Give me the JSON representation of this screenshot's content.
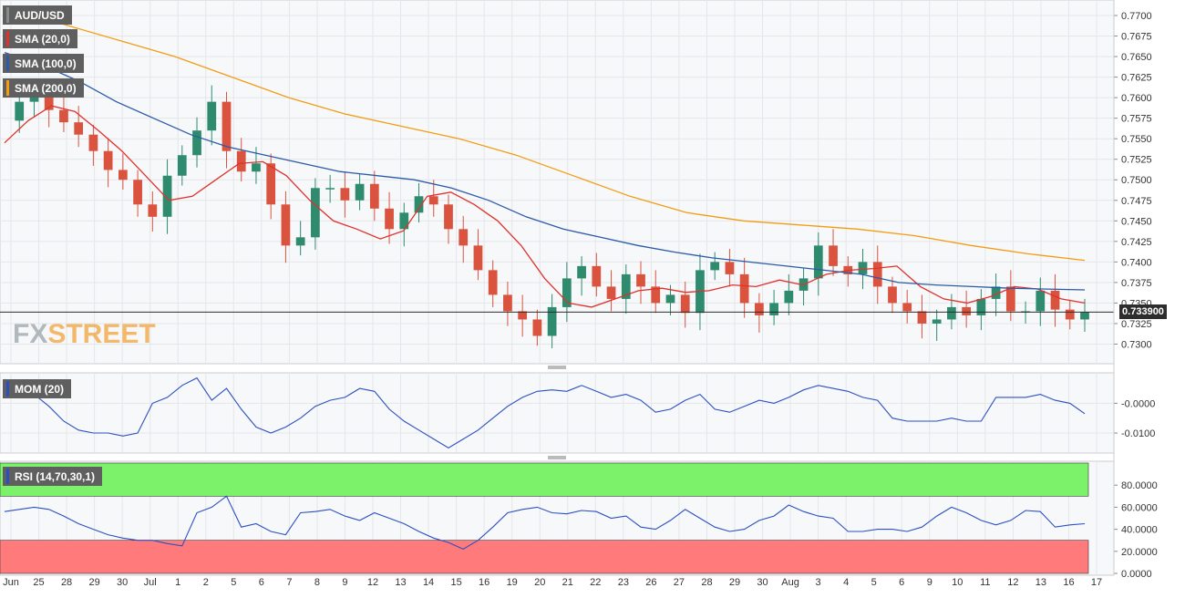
{
  "chart_data": [
    {
      "type": "candlestick",
      "title": "AUD/USD",
      "price_axis": {
        "min": 0.7285,
        "max": 0.771,
        "ticks": [
          "0.7700",
          "0.7675",
          "0.7650",
          "0.7625",
          "0.7600",
          "0.7575",
          "0.7550",
          "0.7525",
          "0.7500",
          "0.7475",
          "0.7450",
          "0.7425",
          "0.7400",
          "0.7375",
          "0.7350",
          "0.7325",
          "0.7300"
        ],
        "tick_values": [
          0.77,
          0.7675,
          0.765,
          0.7625,
          0.76,
          0.7575,
          0.755,
          0.7525,
          0.75,
          0.7475,
          0.745,
          0.7425,
          0.74,
          0.7375,
          0.735,
          0.7325,
          0.73
        ]
      },
      "current_price": 0.7339,
      "current_price_label": "0.733900",
      "x_axis": {
        "ticks": [
          "Jun",
          "25",
          "28",
          "29",
          "30",
          "Jul",
          "1",
          "2",
          "5",
          "6",
          "7",
          "8",
          "9",
          "12",
          "13",
          "14",
          "15",
          "16",
          "19",
          "20",
          "21",
          "22",
          "23",
          "26",
          "27",
          "28",
          "29",
          "30",
          "Aug",
          "3",
          "4",
          "5",
          "6",
          "9",
          "10",
          "11",
          "12",
          "13",
          "16",
          "17"
        ]
      },
      "series_ohlc_path": [
        0.7572,
        0.7595,
        0.7602,
        0.7585,
        0.757,
        0.7555,
        0.7535,
        0.7512,
        0.75,
        0.747,
        0.7455,
        0.7505,
        0.753,
        0.756,
        0.7595,
        0.7535,
        0.751,
        0.752,
        0.747,
        0.742,
        0.743,
        0.749,
        0.749,
        0.7475,
        0.7495,
        0.7465,
        0.744,
        0.746,
        0.748,
        0.747,
        0.744,
        0.742,
        0.739,
        0.736,
        0.734,
        0.733,
        0.731,
        0.7345,
        0.738,
        0.7395,
        0.737,
        0.7355,
        0.7385,
        0.737,
        0.735,
        0.736,
        0.7338,
        0.739,
        0.74,
        0.7385,
        0.735,
        0.7335,
        0.735,
        0.7365,
        0.738,
        0.742,
        0.7395,
        0.7385,
        0.74,
        0.737,
        0.735,
        0.734,
        0.7325,
        0.733,
        0.7345,
        0.7335,
        0.7355,
        0.737,
        0.734,
        0.734,
        0.7365,
        0.7342,
        0.733,
        0.7339
      ],
      "moving_averages": [
        {
          "name": "SMA (20,0)",
          "color": "#e0312b",
          "values": [
            0.7545,
            0.7572,
            0.759,
            0.7583,
            0.756,
            0.7535,
            0.7505,
            0.7475,
            0.748,
            0.75,
            0.752,
            0.7522,
            0.7505,
            0.7475,
            0.745,
            0.744,
            0.7428,
            0.7438,
            0.748,
            0.7485,
            0.747,
            0.745,
            0.742,
            0.738,
            0.735,
            0.7345,
            0.7355,
            0.7365,
            0.7368,
            0.7363,
            0.7365,
            0.7372,
            0.737,
            0.7378,
            0.7372,
            0.7385,
            0.739,
            0.7392,
            0.7395,
            0.737,
            0.7355,
            0.735,
            0.7358,
            0.737,
            0.7367,
            0.7355,
            0.735
          ]
        },
        {
          "name": "SMA (100,0)",
          "color": "#2b5aa8",
          "values": [
            0.7655,
            0.764,
            0.762,
            0.7595,
            0.7575,
            0.7555,
            0.754,
            0.753,
            0.752,
            0.751,
            0.7505,
            0.75,
            0.749,
            0.7475,
            0.7455,
            0.744,
            0.743,
            0.742,
            0.7412,
            0.7405,
            0.74,
            0.7395,
            0.739,
            0.7385,
            0.7375,
            0.7372,
            0.737,
            0.7368,
            0.7367,
            0.7366
          ]
        },
        {
          "name": "SMA (200,0)",
          "color": "#f39c12",
          "values": [
            0.7705,
            0.769,
            0.767,
            0.765,
            0.7625,
            0.76,
            0.758,
            0.7565,
            0.755,
            0.753,
            0.7505,
            0.748,
            0.746,
            0.745,
            0.7445,
            0.744,
            0.7432,
            0.742,
            0.741,
            0.7402
          ]
        }
      ]
    },
    {
      "type": "line",
      "title": "MOM (20)",
      "color": "#2b4fc2",
      "y_ticks": [
        "-0.0000",
        "-0.0100"
      ],
      "y_tick_values": [
        0.0,
        -0.01
      ],
      "ylim": [
        -0.0155,
        0.009
      ],
      "values": [
        0.008,
        0.006,
        0.003,
        -0.001,
        -0.006,
        -0.009,
        -0.01,
        -0.01,
        -0.011,
        -0.01,
        0.0,
        0.002,
        0.006,
        0.0085,
        0.001,
        0.005,
        -0.002,
        -0.008,
        -0.01,
        -0.008,
        -0.005,
        -0.001,
        0.001,
        0.002,
        0.005,
        0.004,
        -0.002,
        -0.006,
        -0.009,
        -0.012,
        -0.015,
        -0.012,
        -0.009,
        -0.005,
        -0.001,
        0.002,
        0.004,
        0.0045,
        0.004,
        0.006,
        0.004,
        0.002,
        0.003,
        0.001,
        -0.003,
        -0.002,
        0.001,
        0.003,
        -0.002,
        -0.003,
        -0.001,
        0.001,
        0.0,
        0.002,
        0.0045,
        0.006,
        0.005,
        0.004,
        0.002,
        0.001,
        -0.005,
        -0.006,
        -0.006,
        -0.006,
        -0.005,
        -0.006,
        -0.006,
        0.002,
        0.002,
        0.002,
        0.003,
        0.001,
        0.0,
        -0.0035
      ]
    },
    {
      "type": "line",
      "title": "RSI (14,70,30,1)",
      "color": "#2b4fc2",
      "overbought": 70,
      "oversold": 30,
      "y_ticks": [
        "80.0000",
        "60.0000",
        "40.0000",
        "20.0000",
        "0.0000"
      ],
      "y_tick_values": [
        80,
        60,
        40,
        20,
        0
      ],
      "ylim": [
        0,
        100
      ],
      "values": [
        56,
        58,
        60,
        58,
        52,
        45,
        40,
        35,
        32,
        30,
        30,
        27,
        25,
        55,
        60,
        70,
        42,
        45,
        38,
        35,
        55,
        56,
        58,
        52,
        48,
        55,
        50,
        45,
        38,
        32,
        28,
        22,
        30,
        42,
        55,
        58,
        60,
        55,
        54,
        57,
        56,
        50,
        52,
        42,
        40,
        48,
        58,
        50,
        42,
        38,
        40,
        48,
        52,
        62,
        56,
        52,
        50,
        38,
        38,
        40,
        40,
        38,
        42,
        52,
        60,
        55,
        48,
        44,
        48,
        57,
        56,
        42,
        44,
        45
      ]
    }
  ],
  "legend": [
    {
      "label": "AUD/USD",
      "color": "#8a8a8a"
    },
    {
      "label": "SMA (20,0)",
      "color": "#e0312b"
    },
    {
      "label": "SMA (100,0)",
      "color": "#2b5aa8"
    },
    {
      "label": "SMA (200,0)",
      "color": "#f39c12"
    }
  ],
  "mom_label": "MOM (20)",
  "rsi_label": "RSI (14,70,30,1)",
  "watermark": {
    "part1": "FX",
    "part2": "STREET"
  },
  "colors": {
    "bull": "#2e8b6e",
    "bear": "#d9533f",
    "rsi_overbought": "#7cf26b",
    "rsi_oversold": "#ff7b7b",
    "grid": "#e4e6ea",
    "panel_bg": "#f7f8fa"
  }
}
